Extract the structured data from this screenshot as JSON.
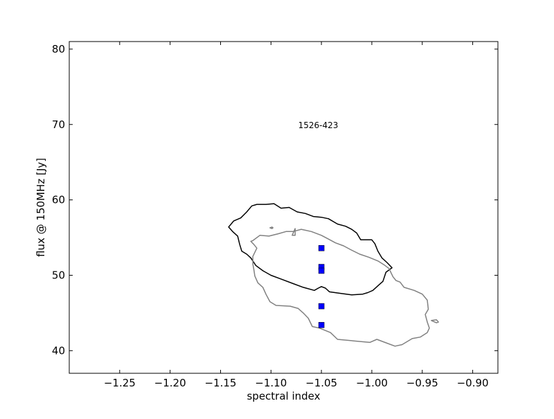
{
  "chart_data": {
    "type": "scatter",
    "title": "",
    "xlabel": "spectral index",
    "ylabel": "flux @ 150MHz [Jy]",
    "xlim": [
      -1.3,
      -0.875
    ],
    "ylim": [
      37,
      81
    ],
    "xticks": [
      -1.25,
      -1.2,
      -1.15,
      -1.1,
      -1.05,
      -1.0,
      -0.95,
      -0.9
    ],
    "xtick_labels": [
      "−1.25",
      "−1.20",
      "−1.15",
      "−1.10",
      "−1.05",
      "−1.00",
      "−0.95",
      "−0.90"
    ],
    "yticks": [
      40,
      50,
      60,
      70,
      80
    ],
    "ytick_labels": [
      "40",
      "50",
      "60",
      "70",
      "80"
    ],
    "grid": false,
    "annotations": [
      {
        "text": "1526-423",
        "x": -1.073,
        "y": 69.5
      }
    ],
    "series": [
      {
        "kind": "points",
        "marker": "square",
        "color": "#0000ff",
        "points": [
          {
            "x": -1.05,
            "y": 53.6
          },
          {
            "x": -1.05,
            "y": 51.1
          },
          {
            "x": -1.05,
            "y": 50.6
          },
          {
            "x": -1.05,
            "y": 45.9
          },
          {
            "x": -1.05,
            "y": 43.4
          }
        ]
      },
      {
        "kind": "contour",
        "color": "#000000",
        "closed": true,
        "points": [
          [
            -1.142,
            56.4
          ],
          [
            -1.137,
            57.2
          ],
          [
            -1.13,
            57.6
          ],
          [
            -1.124,
            58.4
          ],
          [
            -1.119,
            59.2
          ],
          [
            -1.114,
            59.4
          ],
          [
            -1.105,
            59.4
          ],
          [
            -1.097,
            59.5
          ],
          [
            -1.09,
            58.9
          ],
          [
            -1.082,
            59.0
          ],
          [
            -1.074,
            58.4
          ],
          [
            -1.066,
            58.2
          ],
          [
            -1.058,
            57.8
          ],
          [
            -1.05,
            57.7
          ],
          [
            -1.043,
            57.5
          ],
          [
            -1.034,
            56.8
          ],
          [
            -1.026,
            56.5
          ],
          [
            -1.02,
            56.1
          ],
          [
            -1.015,
            55.6
          ],
          [
            -1.011,
            54.7
          ],
          [
            -1.005,
            54.7
          ],
          [
            -1.0,
            54.7
          ],
          [
            -0.997,
            54.2
          ],
          [
            -0.994,
            53.2
          ],
          [
            -0.99,
            52.3
          ],
          [
            -0.985,
            51.7
          ],
          [
            -0.98,
            51.0
          ],
          [
            -0.983,
            50.7
          ],
          [
            -0.986,
            50.4
          ],
          [
            -0.989,
            49.2
          ],
          [
            -0.994,
            48.6
          ],
          [
            -0.999,
            48.0
          ],
          [
            -1.004,
            47.7
          ],
          [
            -1.009,
            47.5
          ],
          [
            -1.02,
            47.4
          ],
          [
            -1.031,
            47.6
          ],
          [
            -1.042,
            47.8
          ],
          [
            -1.046,
            48.3
          ],
          [
            -1.05,
            48.5
          ],
          [
            -1.053,
            48.3
          ],
          [
            -1.057,
            48.0
          ],
          [
            -1.068,
            48.4
          ],
          [
            -1.078,
            48.9
          ],
          [
            -1.09,
            49.5
          ],
          [
            -1.1,
            50.0
          ],
          [
            -1.108,
            50.6
          ],
          [
            -1.115,
            51.3
          ],
          [
            -1.12,
            52.3
          ],
          [
            -1.124,
            52.8
          ],
          [
            -1.129,
            53.2
          ],
          [
            -1.131,
            54.1
          ],
          [
            -1.133,
            55.2
          ],
          [
            -1.138,
            55.8
          ],
          [
            -1.142,
            56.4
          ]
        ]
      },
      {
        "kind": "contour",
        "color": "#808080",
        "closed": true,
        "points": [
          [
            -1.118,
            54.6
          ],
          [
            -1.111,
            55.3
          ],
          [
            -1.102,
            55.2
          ],
          [
            -1.093,
            55.5
          ],
          [
            -1.085,
            55.8
          ],
          [
            -1.078,
            55.8
          ],
          [
            -1.07,
            56.1
          ],
          [
            -1.06,
            55.8
          ],
          [
            -1.05,
            55.3
          ],
          [
            -1.043,
            54.8
          ],
          [
            -1.036,
            54.3
          ],
          [
            -1.028,
            53.9
          ],
          [
            -1.021,
            53.4
          ],
          [
            -1.012,
            52.8
          ],
          [
            -1.003,
            52.4
          ],
          [
            -0.994,
            51.9
          ],
          [
            -0.988,
            51.4
          ],
          [
            -0.983,
            50.9
          ],
          [
            -0.979,
            49.8
          ],
          [
            -0.976,
            49.3
          ],
          [
            -0.972,
            49.1
          ],
          [
            -0.968,
            48.4
          ],
          [
            -0.958,
            48.0
          ],
          [
            -0.95,
            47.5
          ],
          [
            -0.945,
            46.7
          ],
          [
            -0.944,
            45.5
          ],
          [
            -0.947,
            44.8
          ],
          [
            -0.945,
            43.8
          ],
          [
            -0.943,
            43.0
          ],
          [
            -0.945,
            42.4
          ],
          [
            -0.952,
            41.8
          ],
          [
            -0.96,
            41.6
          ],
          [
            -0.97,
            40.8
          ],
          [
            -0.977,
            40.6
          ],
          [
            -0.985,
            41.0
          ],
          [
            -0.995,
            41.5
          ],
          [
            -1.002,
            41.1
          ],
          [
            -1.018,
            41.3
          ],
          [
            -1.034,
            41.5
          ],
          [
            -1.041,
            42.4
          ],
          [
            -1.052,
            43.0
          ],
          [
            -1.059,
            43.2
          ],
          [
            -1.063,
            44.3
          ],
          [
            -1.068,
            45.0
          ],
          [
            -1.073,
            45.6
          ],
          [
            -1.081,
            45.9
          ],
          [
            -1.095,
            46.0
          ],
          [
            -1.101,
            46.5
          ],
          [
            -1.105,
            47.5
          ],
          [
            -1.108,
            48.4
          ],
          [
            -1.113,
            49.0
          ],
          [
            -1.116,
            49.9
          ],
          [
            -1.117,
            50.8
          ],
          [
            -1.118,
            51.5
          ],
          [
            -1.118,
            52.5
          ],
          [
            -1.114,
            53.6
          ],
          [
            -1.117,
            54.1
          ],
          [
            -1.12,
            54.5
          ],
          [
            -1.118,
            54.6
          ]
        ]
      },
      {
        "kind": "contour",
        "color": "#808080",
        "closed": true,
        "points": [
          [
            -1.079,
            55.3
          ],
          [
            -1.077,
            55.9
          ],
          [
            -1.076,
            56.2
          ],
          [
            -1.076,
            55.8
          ],
          [
            -1.076,
            55.3
          ],
          [
            -1.078,
            55.3
          ],
          [
            -1.079,
            55.3
          ]
        ]
      },
      {
        "kind": "contour",
        "color": "#808080",
        "closed": true,
        "points": [
          [
            -1.101,
            56.3
          ],
          [
            -1.099,
            56.4
          ],
          [
            -1.098,
            56.3
          ],
          [
            -1.099,
            56.2
          ],
          [
            -1.101,
            56.3
          ]
        ]
      },
      {
        "kind": "contour",
        "color": "#808080",
        "closed": true,
        "points": [
          [
            -0.941,
            44.0
          ],
          [
            -0.936,
            44.1
          ],
          [
            -0.934,
            43.8
          ],
          [
            -0.936,
            43.7
          ],
          [
            -0.941,
            44.0
          ]
        ]
      }
    ]
  }
}
